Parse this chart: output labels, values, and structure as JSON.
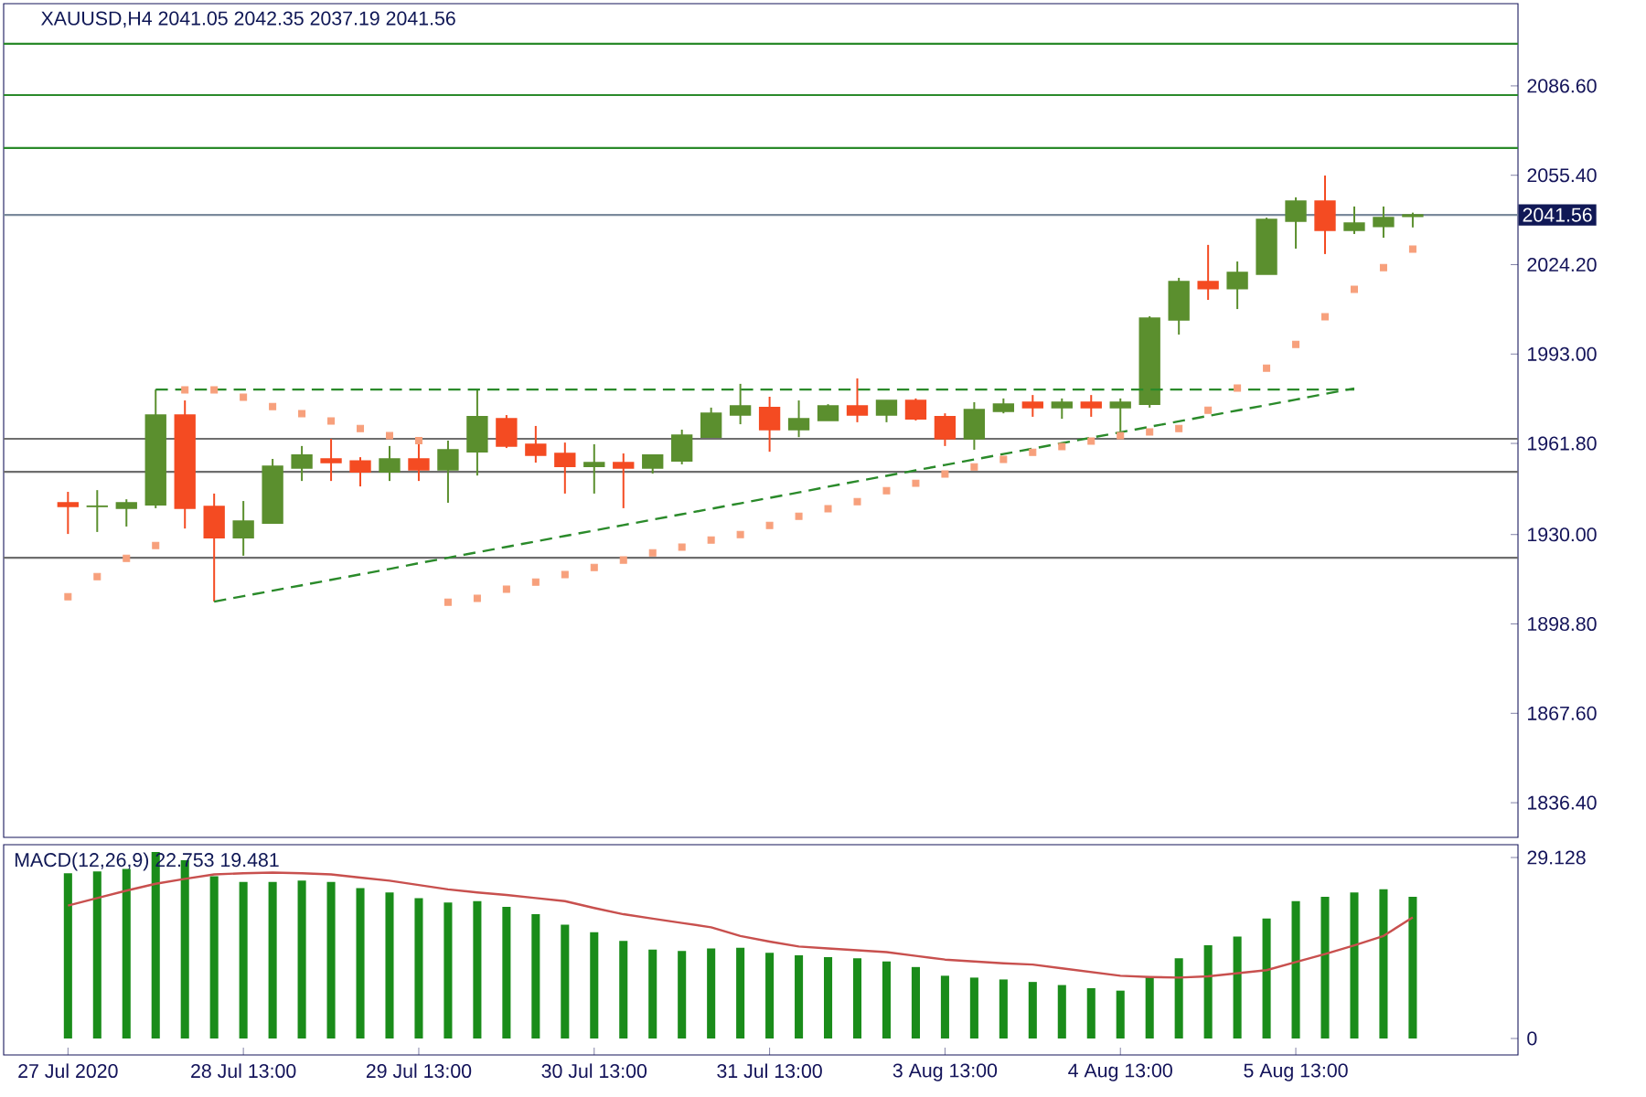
{
  "chart_data": [
    {
      "type": "candlestick",
      "title": "XAUUSD,H4  2041.05 2042.35 2037.19 2041.56",
      "categories": [
        null,
        null,
        null,
        null,
        null,
        null,
        null,
        null,
        null,
        null,
        null,
        null,
        null,
        null,
        null,
        null,
        null,
        null,
        null,
        null,
        null,
        null,
        null,
        null,
        null,
        null,
        null,
        null,
        null,
        null,
        null,
        null,
        null,
        null,
        null,
        null,
        null,
        null,
        null,
        null,
        null,
        null,
        null,
        null,
        null,
        null,
        null
      ],
      "ylim": [
        1824.3,
        2115.3
      ],
      "tick_labels": "y",
      "yticks": [
        {
          "value": 1836.4,
          "label": "1836.40"
        },
        {
          "value": 1867.6,
          "label": "1867.60"
        },
        {
          "value": 1898.8,
          "label": "1898.80"
        },
        {
          "value": 1930,
          "label": "1930.00"
        },
        {
          "value": 1961.8,
          "label": "1961.80"
        },
        {
          "value": 1993,
          "label": "1993.00"
        },
        {
          "value": 2024.2,
          "label": "2024.20"
        },
        {
          "value": 2055.4,
          "label": "2055.40"
        },
        {
          "value": 2086.6,
          "label": "2086.60"
        }
      ],
      "ohlc": [
        [
          1941.1,
          1944.9,
          1930.2,
          1939.8
        ],
        [
          1939.8,
          1945.5,
          1930.9,
          1939.9
        ],
        [
          1939.2,
          1942.3,
          1932.8,
          1941.1
        ],
        [
          1940.4,
          1980.6,
          1939.2,
          1971.7
        ],
        [
          1971.7,
          1976.8,
          1932.1,
          1939.2
        ],
        [
          1939.8,
          1944.3,
          1906.6,
          1928.9
        ],
        [
          1928.9,
          1941.7,
          1922.6,
          1934.7
        ],
        [
          1934.0,
          1956.4,
          1934.0,
          1953.8
        ],
        [
          1953.2,
          1960.9,
          1948.7,
          1957.7
        ],
        [
          1956.4,
          1963.4,
          1948.7,
          1955.1
        ],
        [
          1955.7,
          1957.0,
          1946.8,
          1951.9
        ],
        [
          1951.9,
          1960.9,
          1948.7,
          1956.4
        ],
        [
          1956.4,
          1963.4,
          1948.7,
          1952.6
        ],
        [
          1952.6,
          1962.8,
          1941.1,
          1959.6
        ],
        [
          1958.9,
          1980.6,
          1950.6,
          1971.1
        ],
        [
          1970.4,
          1971.7,
          1960.2,
          1960.9
        ],
        [
          1961.5,
          1967.9,
          1955.1,
          1957.7
        ],
        [
          1958.3,
          1962.1,
          1944.3,
          1953.8
        ],
        [
          1953.8,
          1961.5,
          1944.3,
          1955.1
        ],
        [
          1955.1,
          1958.3,
          1939.2,
          1953.2
        ],
        [
          1953.2,
          1957.7,
          1951.3,
          1957.7
        ],
        [
          1955.7,
          1966.6,
          1954.5,
          1964.7
        ],
        [
          1964.0,
          1974.3,
          1964.0,
          1972.3
        ],
        [
          1971.7,
          1982.6,
          1968.5,
          1974.9
        ],
        [
          1974.3,
          1978.1,
          1958.9,
          1966.6
        ],
        [
          1966.6,
          1976.8,
          1964.0,
          1970.4
        ],
        [
          1969.8,
          1975.5,
          1969.8,
          1974.9
        ],
        [
          1974.9,
          1984.5,
          1969.2,
          1971.7
        ],
        [
          1971.7,
          1976.8,
          1969.2,
          1976.8
        ],
        [
          1976.8,
          1977.5,
          1969.8,
          1970.4
        ],
        [
          1971.1,
          1972.3,
          1960.9,
          1963.4
        ],
        [
          1963.4,
          1976.2,
          1959.6,
          1973.6
        ],
        [
          1973.0,
          1977.5,
          1972.3,
          1975.5
        ],
        [
          1976.2,
          1978.7,
          1971.1,
          1974.3
        ],
        [
          1974.3,
          1977.5,
          1970.4,
          1976.2
        ],
        [
          1976.2,
          1978.7,
          1971.1,
          1974.3
        ],
        [
          1974.3,
          1977.5,
          1966.0,
          1976.2
        ],
        [
          1975.5,
          2006.2,
          1974.3,
          2005.5
        ],
        [
          2004.9,
          2019.6,
          1999.8,
          2018.3
        ],
        [
          2018.3,
          2031.1,
          2011.9,
          2015.8
        ],
        [
          2015.8,
          2025.3,
          2008.7,
          2021.5
        ],
        [
          2020.9,
          2040.6,
          2020.9,
          2040.0
        ],
        [
          2039.4,
          2047.7,
          2029.8,
          2046.4
        ],
        [
          2046.4,
          2055.3,
          2027.9,
          2036.2
        ],
        [
          2036.2,
          2044.5,
          2034.9,
          2038.7
        ],
        [
          2037.5,
          2044.5,
          2033.6,
          2040.6
        ],
        [
          2041.05,
          2042.35,
          2037.19,
          2041.56
        ]
      ],
      "colors": [
        "#f44b22",
        "#5b8f2e",
        "#5b8f2e",
        "#5b8f2e",
        "#f44b22",
        "#f44b22",
        "#5b8f2e",
        "#5b8f2e",
        "#5b8f2e",
        "#f44b22",
        "#f44b22",
        "#5b8f2e",
        "#f44b22",
        "#5b8f2e",
        "#5b8f2e",
        "#f44b22",
        "#f44b22",
        "#f44b22",
        "#5b8f2e",
        "#f44b22",
        "#5b8f2e",
        "#5b8f2e",
        "#5b8f2e",
        "#5b8f2e",
        "#f44b22",
        "#5b8f2e",
        "#5b8f2e",
        "#f44b22",
        "#5b8f2e",
        "#f44b22",
        "#f44b22",
        "#5b8f2e",
        "#5b8f2e",
        "#f44b22",
        "#5b8f2e",
        "#f44b22",
        "#5b8f2e",
        "#5b8f2e",
        "#5b8f2e",
        "#f44b22",
        "#5b8f2e",
        "#5b8f2e",
        "#5b8f2e",
        "#f44b22",
        "#5b8f2e",
        "#5b8f2e",
        "#5b8f2e"
      ],
      "series": [
        {
          "type": "scatter",
          "marker": "square",
          "color": "#f7a07c",
          "values": [
            1908.3,
            1915.3,
            1921.7,
            1926.2,
            1980.5,
            1980.5,
            1977.9,
            1974.7,
            1972.2,
            1969.6,
            1967.0,
            1964.5,
            1962.8,
            1906.4,
            1907.7,
            1910.9,
            1913.4,
            1916.0,
            1918.5,
            1921.1,
            1923.6,
            1925.6,
            1928.1,
            1930.0,
            1933.2,
            1936.4,
            1939.0,
            1941.5,
            1945.3,
            1947.9,
            1951.1,
            1953.6,
            1956.2,
            1958.7,
            1960.7,
            1962.6,
            1964.5,
            1965.8,
            1967.0,
            1973.4,
            1981.1,
            1988.1,
            1996.4,
            2006.0,
            2015.6,
            2023.2,
            2029.6
          ]
        },
        {
          "type": "line",
          "line_style": "dashed",
          "color": "#2a8a2a",
          "values": [
            null,
            null,
            null,
            1980.6,
            1980.6,
            1980.6,
            1980.6,
            1980.6,
            1980.6,
            1980.6,
            1980.6,
            1980.6,
            1980.6,
            1980.6,
            1980.6,
            1980.6,
            1980.6,
            1980.6,
            1980.6,
            1980.6,
            1980.6,
            1980.6,
            1980.6,
            1980.6,
            1980.6,
            1980.6,
            1980.6,
            1980.6,
            1980.6,
            1980.6,
            1980.6,
            1980.6,
            1980.6,
            1980.6,
            1980.6,
            1980.6,
            1980.6,
            1980.6,
            1980.6,
            1980.6,
            1980.6,
            1980.6,
            1980.6,
            1980.6,
            1980.6,
            null,
            null
          ]
        },
        {
          "type": "line",
          "line_style": "dashed",
          "color": "#2a8a2a",
          "values": [
            null,
            null,
            null,
            null,
            null,
            1906.6,
            1908.5,
            1910.4,
            1912.3,
            1914.2,
            1916.1,
            1918.0,
            1920.0,
            1921.9,
            1923.8,
            1925.7,
            1927.6,
            1929.5,
            1931.4,
            1933.3,
            1935.2,
            1937.1,
            1939.0,
            1940.9,
            1942.8,
            1944.7,
            1946.7,
            1948.6,
            1950.5,
            1952.4,
            1954.3,
            1956.2,
            1958.1,
            1960.0,
            1961.9,
            1963.8,
            1965.7,
            1967.6,
            1969.5,
            1971.4,
            1973.3,
            1975.2,
            1977.1,
            1979.1,
            1981.0,
            null,
            null
          ]
        }
      ],
      "ref_lines": [
        {
          "axis": "y",
          "value": 2101.3,
          "color": "#2a8a2a"
        },
        {
          "axis": "y",
          "value": 2083.4,
          "color": "#2a8a2a"
        },
        {
          "axis": "y",
          "value": 2064.9,
          "color": "#2a8a2a"
        },
        {
          "axis": "y",
          "value": 2041.56,
          "label": "2041.56",
          "color": "#7a8a9c"
        },
        {
          "axis": "y",
          "value": 1963.4,
          "color": "#6e6e6e"
        },
        {
          "axis": "y",
          "value": 1951.9,
          "color": "#6e6e6e"
        },
        {
          "axis": "y",
          "value": 1921.9,
          "color": "#6e6e6e"
        }
      ]
    },
    {
      "type": "bar",
      "title": "MACD(12,26,9) 22.753 19.481",
      "categories": [
        "27 Jul 2020",
        null,
        null,
        null,
        null,
        null,
        "28 Jul 13:00",
        null,
        null,
        null,
        null,
        null,
        "29 Jul 13:00",
        null,
        null,
        null,
        null,
        null,
        "30 Jul 13:00",
        null,
        null,
        null,
        null,
        null,
        "31 Jul 13:00",
        null,
        null,
        null,
        null,
        null,
        "3 Aug 13:00",
        null,
        null,
        null,
        null,
        null,
        "4 Aug 13:00",
        null,
        null,
        null,
        null,
        null,
        "5 Aug 13:00",
        null,
        null,
        null,
        null
      ],
      "ylim": [
        -2.65,
        31.19
      ],
      "yticks": [
        0,
        29.128
      ],
      "series": [
        {
          "type": "bar",
          "color": "#1a8c1a",
          "values": [
            26.6,
            26.9,
            27.3,
            30.0,
            28.7,
            26.1,
            25.2,
            25.2,
            25.4,
            25.2,
            24.2,
            23.5,
            22.6,
            21.9,
            22.1,
            21.2,
            20.0,
            18.3,
            17.1,
            15.7,
            14.3,
            14.1,
            14.5,
            14.6,
            13.8,
            13.4,
            13.1,
            12.9,
            12.4,
            11.5,
            10.1,
            9.8,
            9.5,
            9.1,
            8.6,
            8.1,
            7.7,
            10.0,
            12.9,
            15.0,
            16.4,
            19.3,
            22.1,
            22.8,
            23.5,
            24.0,
            22.8
          ]
        },
        {
          "type": "line",
          "color": "#c8504e",
          "values": [
            21.4,
            22.6,
            23.8,
            24.9,
            25.7,
            26.4,
            26.6,
            26.7,
            26.6,
            26.4,
            25.9,
            25.4,
            24.7,
            24.0,
            23.5,
            23.1,
            22.6,
            22.1,
            21.0,
            20.0,
            19.3,
            18.6,
            17.9,
            16.5,
            15.6,
            14.8,
            14.5,
            14.2,
            13.9,
            13.3,
            12.7,
            12.4,
            12.1,
            11.9,
            11.3,
            10.7,
            10.1,
            9.9,
            9.8,
            10.0,
            10.5,
            11.0,
            12.3,
            13.6,
            15.0,
            16.5,
            19.5
          ]
        }
      ]
    }
  ]
}
